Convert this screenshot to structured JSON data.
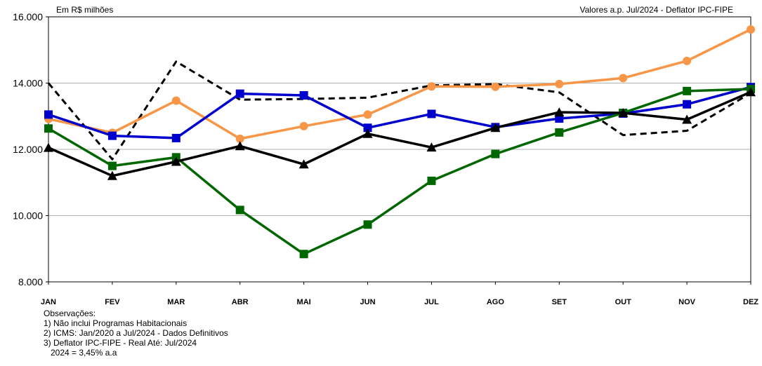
{
  "chart_data": {
    "type": "line",
    "unit_note": "Em R$ milhões",
    "top_right_note": "Valores a.p. Jul/2024 - Deflator IPC-FIPE",
    "categories": [
      "JAN",
      "FEV",
      "MAR",
      "ABR",
      "MAI",
      "JUN",
      "JUL",
      "AGO",
      "SET",
      "OUT",
      "NOV",
      "DEZ"
    ],
    "y_ticks": [
      8000,
      10000,
      12000,
      14000,
      16000
    ],
    "y_tick_labels": [
      "8.000",
      "10.000",
      "12.000",
      "14.000",
      "16.000"
    ],
    "ylim": [
      8000,
      16000
    ],
    "grid": true,
    "series": [
      {
        "color": "#000000",
        "dash": true,
        "marker": "none",
        "values": [
          14000,
          11700,
          14650,
          13500,
          13520,
          13560,
          13930,
          13970,
          13720,
          12430,
          12560,
          13700
        ]
      },
      {
        "color": "#F79646",
        "dash": false,
        "marker": "circle",
        "values": [
          12920,
          12500,
          13470,
          12320,
          12700,
          13050,
          13900,
          13890,
          13970,
          14150,
          14670,
          15620
        ]
      },
      {
        "color": "#0000CC",
        "dash": false,
        "marker": "square",
        "values": [
          13050,
          12410,
          12340,
          13680,
          13630,
          12650,
          13070,
          12670,
          12930,
          13080,
          13360,
          13880
        ]
      },
      {
        "color": "#006600",
        "dash": false,
        "marker": "square",
        "values": [
          12630,
          11500,
          11760,
          10170,
          8840,
          9730,
          11050,
          11860,
          12510,
          13100,
          13760,
          13820
        ]
      },
      {
        "color": "#000000",
        "dash": false,
        "marker": "triangle",
        "values": [
          12050,
          11200,
          11630,
          12100,
          11550,
          12470,
          12060,
          12650,
          13120,
          13100,
          12900,
          13730
        ]
      }
    ]
  },
  "notes": {
    "heading": "Observações:",
    "items": [
      "1) Não inclui Programas Habitacionais",
      "2) ICMS: Jan/2020 a Jul/2024 - Dados Definitivos",
      "3) Deflator IPC-FIPE - Real Até: Jul/2024"
    ],
    "sub": "2024 = 3,45% a.a"
  }
}
